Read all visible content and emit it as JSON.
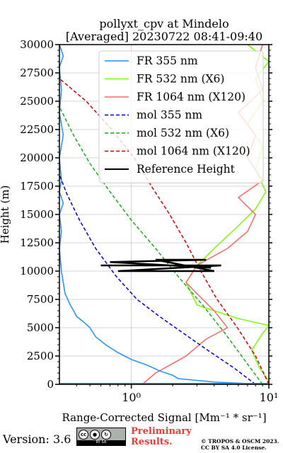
{
  "chart_data": {
    "type": "line",
    "title": "pollyxt_cpv at Mindelo",
    "subtitle": "[Averaged] 20230722 08:41-09:40",
    "xlabel": "Range-Corrected Signal [Mm⁻¹ * sr⁻¹]",
    "ylabel": "Height (m)",
    "xscale": "log",
    "xlim": [
      0.3,
      10
    ],
    "ylim": [
      0,
      30000
    ],
    "xticks": [
      {
        "value": 1,
        "label": "10⁰"
      },
      {
        "value": 10,
        "label": "10¹"
      }
    ],
    "yticks": [
      0,
      2500,
      5000,
      7500,
      10000,
      12500,
      15000,
      17500,
      20000,
      22500,
      25000,
      27500,
      30000
    ],
    "ytick_labels": [
      "0",
      "2500",
      "5000",
      "7500",
      "10000",
      "12500",
      "15000",
      "17500",
      "20000",
      "22500",
      "25000",
      "27500",
      "30000"
    ],
    "grid": true,
    "legend_position": "top-right",
    "series": [
      {
        "name": "FR 355 nm",
        "color": "#1e90ff",
        "style": "solid",
        "points": [
          [
            9.5,
            0
          ],
          [
            4.0,
            200
          ],
          [
            2.2,
            500
          ],
          [
            2.0,
            800
          ],
          [
            1.6,
            1200
          ],
          [
            1.3,
            1700
          ],
          [
            1.0,
            2200
          ],
          [
            0.8,
            2800
          ],
          [
            0.65,
            3500
          ],
          [
            0.55,
            4200
          ],
          [
            0.5,
            5000
          ],
          [
            0.45,
            5500
          ],
          [
            0.4,
            6000
          ],
          [
            0.38,
            6500
          ],
          [
            0.36,
            7000
          ],
          [
            0.33,
            8000
          ],
          [
            0.32,
            9000
          ],
          [
            0.31,
            10000
          ],
          [
            0.3,
            12000
          ],
          [
            0.31,
            13500
          ],
          [
            0.3,
            15000
          ],
          [
            0.32,
            16000
          ],
          [
            0.3,
            17000
          ],
          [
            0.31,
            18000
          ],
          [
            0.3,
            20000
          ],
          [
            0.32,
            22000
          ],
          [
            0.3,
            24000
          ],
          [
            0.31,
            26000
          ],
          [
            0.3,
            28000
          ],
          [
            0.32,
            29000
          ],
          [
            0.3,
            30000
          ]
        ]
      },
      {
        "name": "FR 532 nm (X6)",
        "color": "#7cfc00",
        "style": "solid",
        "points": [
          [
            9.8,
            0
          ],
          [
            10,
            300
          ],
          [
            8.5,
            1500
          ],
          [
            7.5,
            3000
          ],
          [
            9.0,
            4500
          ],
          [
            10,
            5200
          ],
          [
            6.0,
            5800
          ],
          [
            3.0,
            7000
          ],
          [
            2.5,
            9000
          ],
          [
            3.0,
            10500
          ],
          [
            4.0,
            12000
          ],
          [
            6.0,
            14000
          ],
          [
            8.0,
            15500
          ],
          [
            9.5,
            17000
          ],
          [
            8.0,
            19000
          ],
          [
            9.0,
            21000
          ],
          [
            7.0,
            23000
          ],
          [
            9.0,
            25000
          ],
          [
            8.0,
            27000
          ],
          [
            10,
            28500
          ],
          [
            7.0,
            30000
          ]
        ]
      },
      {
        "name": "FR 1064 nm (X120)",
        "color": "#ff6666",
        "style": "solid",
        "points": [
          [
            1.2,
            0
          ],
          [
            1.5,
            1000
          ],
          [
            2.5,
            2500
          ],
          [
            3.5,
            4000
          ],
          [
            5.0,
            5000
          ],
          [
            4.0,
            6500
          ],
          [
            3.0,
            8000
          ],
          [
            2.5,
            9000
          ],
          [
            3.0,
            10500
          ],
          [
            5.0,
            12000
          ],
          [
            7.0,
            13500
          ],
          [
            8.0,
            15000
          ],
          [
            6.0,
            16500
          ],
          [
            9.0,
            18000
          ],
          [
            7.0,
            20000
          ],
          [
            8.0,
            22000
          ],
          [
            6.0,
            24000
          ],
          [
            9.0,
            26000
          ],
          [
            8.0,
            28000
          ],
          [
            9.0,
            30000
          ]
        ]
      },
      {
        "name": "mol 355 nm",
        "color": "#0000cc",
        "style": "dashed",
        "points": [
          [
            8.0,
            0
          ],
          [
            5.5,
            1500
          ],
          [
            3.6,
            3000
          ],
          [
            2.4,
            4500
          ],
          [
            1.6,
            6000
          ],
          [
            1.1,
            7500
          ],
          [
            0.78,
            9500
          ],
          [
            0.55,
            12000
          ],
          [
            0.42,
            14500
          ],
          [
            0.34,
            16800
          ],
          [
            0.3,
            18500
          ]
        ]
      },
      {
        "name": "mol 532 nm (X6)",
        "color": "#1aaa1a",
        "style": "dashed",
        "points": [
          [
            9.0,
            0
          ],
          [
            6.8,
            2000
          ],
          [
            4.8,
            4500
          ],
          [
            3.3,
            7000
          ],
          [
            2.2,
            9500
          ],
          [
            1.5,
            12000
          ],
          [
            1.0,
            14500
          ],
          [
            0.7,
            17000
          ],
          [
            0.5,
            19500
          ],
          [
            0.38,
            22000
          ],
          [
            0.3,
            24500
          ]
        ]
      },
      {
        "name": "mol 1064 nm (X120)",
        "color": "#d40000",
        "style": "dashed",
        "points": [
          [
            10,
            0
          ],
          [
            8.0,
            2500
          ],
          [
            5.9,
            5000
          ],
          [
            4.2,
            7500
          ],
          [
            3.2,
            10000
          ],
          [
            2.5,
            12500
          ],
          [
            1.9,
            15000
          ],
          [
            1.4,
            17500
          ],
          [
            1.05,
            20000
          ],
          [
            0.72,
            22500
          ],
          [
            0.47,
            25000
          ],
          [
            0.3,
            27000
          ]
        ]
      },
      {
        "name": "Reference Height",
        "color": "#000000",
        "style": "solid",
        "points": [
          [
            0.6,
            10500
          ],
          [
            4.5,
            10500
          ],
          [
            0.8,
            10000
          ],
          [
            4.0,
            10000
          ],
          [
            1.5,
            11000
          ],
          [
            3.5,
            11000
          ],
          [
            0.7,
            10800
          ],
          [
            3.8,
            10300
          ]
        ]
      }
    ],
    "ground_line": {
      "color": "#1e90ff",
      "points": [
        [
          0.3,
          0
        ],
        [
          10,
          0
        ]
      ]
    }
  },
  "footer": {
    "version": "Version: 3.6",
    "preliminary": [
      "Preliminary",
      "Results."
    ],
    "copyright": [
      "© TROPOS & OSCM 2023.",
      "CC BY SA 4.0 License."
    ],
    "license_badge_top": "cc",
    "license_badge_bottom": "BY    SA"
  }
}
